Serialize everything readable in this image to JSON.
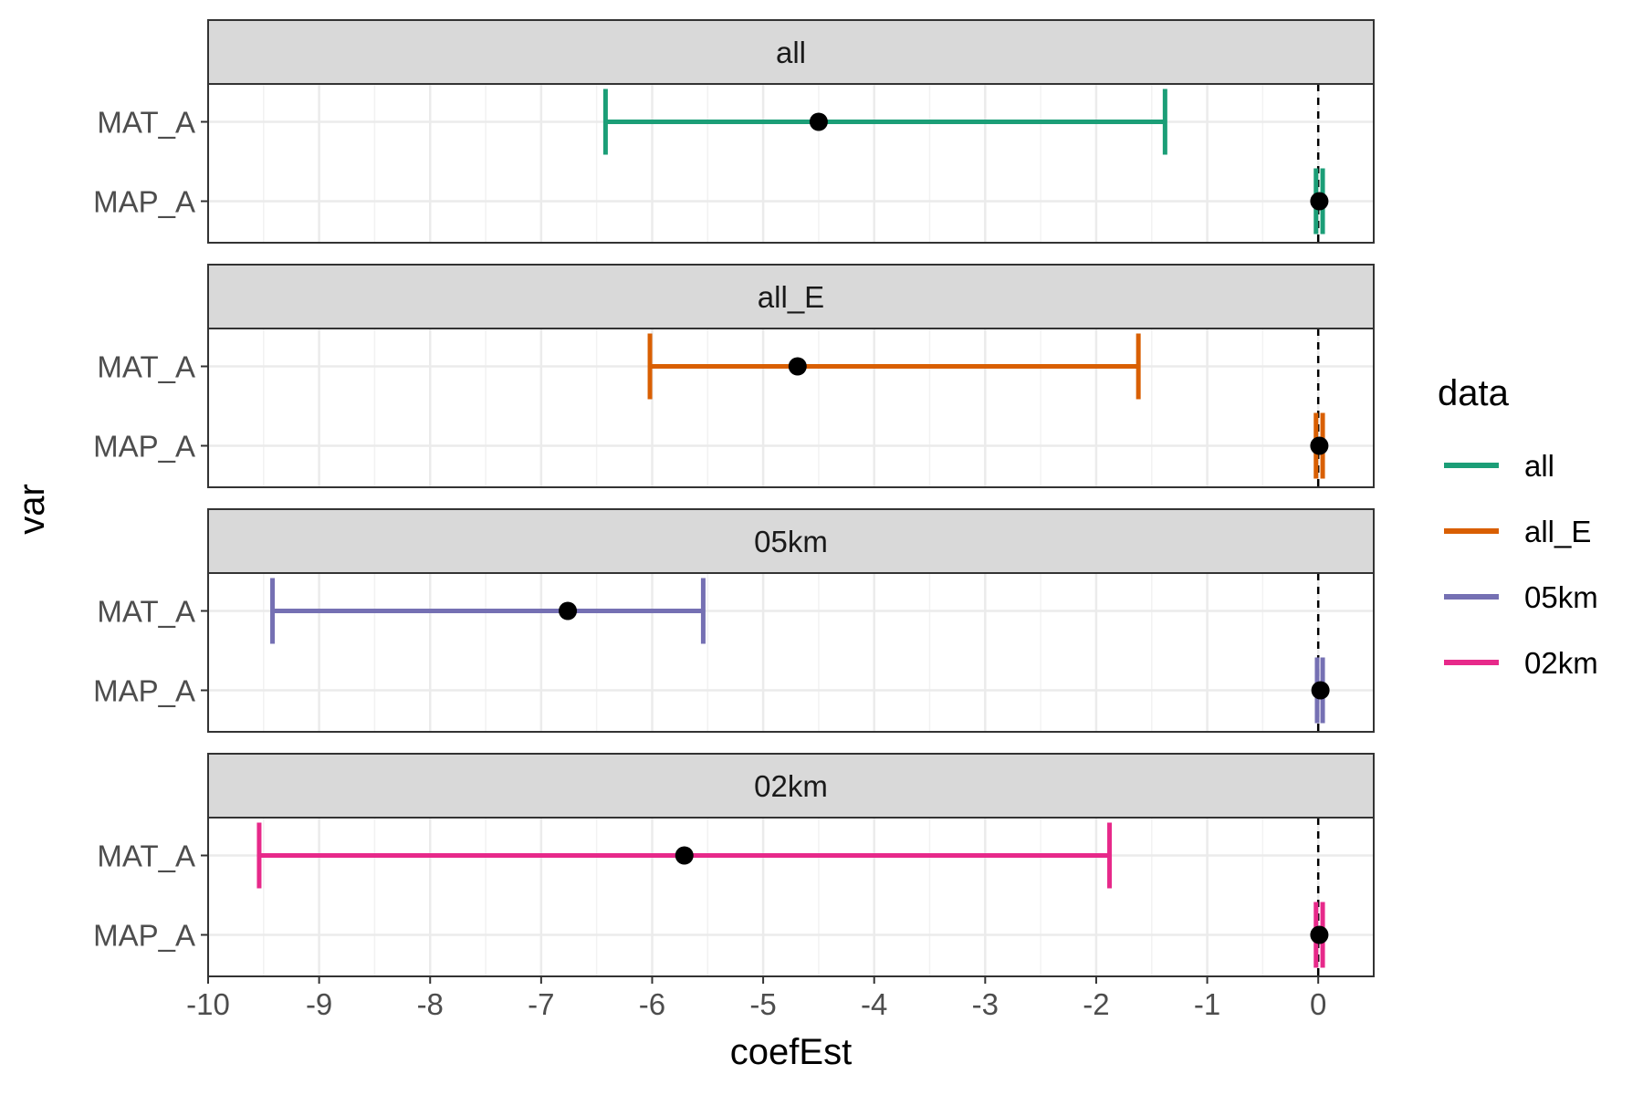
{
  "chart_data": {
    "type": "errorbar",
    "xlabel": "coefEst",
    "ylabel": "var",
    "xlim": [
      -10,
      0.5
    ],
    "x_ticks": [
      -10,
      -9,
      -8,
      -7,
      -6,
      -5,
      -4,
      -3,
      -2,
      -1,
      0
    ],
    "reference_line_x": 0,
    "y_categories": [
      "MAT_A",
      "MAP_A"
    ],
    "legend": {
      "title": "data",
      "position": "right",
      "entries": [
        {
          "label": "all",
          "color": "#1b9e77"
        },
        {
          "label": "all_E",
          "color": "#d95f02"
        },
        {
          "label": "05km",
          "color": "#7570b3"
        },
        {
          "label": "02km",
          "color": "#e7298a"
        }
      ]
    },
    "grid": true,
    "panels": [
      {
        "title": "all",
        "color": "#1b9e77",
        "points": [
          {
            "var": "MAT_A",
            "est": -4.5,
            "lo": -6.42,
            "hi": -1.38
          },
          {
            "var": "MAP_A",
            "est": 0.01,
            "lo": -0.02,
            "hi": 0.04
          }
        ]
      },
      {
        "title": "all_E",
        "color": "#d95f02",
        "points": [
          {
            "var": "MAT_A",
            "est": -4.69,
            "lo": -6.02,
            "hi": -1.62
          },
          {
            "var": "MAP_A",
            "est": 0.01,
            "lo": -0.02,
            "hi": 0.04
          }
        ]
      },
      {
        "title": "05km",
        "color": "#7570b3",
        "points": [
          {
            "var": "MAT_A",
            "est": -6.76,
            "lo": -9.42,
            "hi": -5.54
          },
          {
            "var": "MAP_A",
            "est": 0.02,
            "lo": -0.01,
            "hi": 0.04
          }
        ]
      },
      {
        "title": "02km",
        "color": "#e7298a",
        "points": [
          {
            "var": "MAT_A",
            "est": -5.71,
            "lo": -9.54,
            "hi": -1.88
          },
          {
            "var": "MAP_A",
            "est": 0.01,
            "lo": -0.02,
            "hi": 0.04
          }
        ]
      }
    ]
  }
}
